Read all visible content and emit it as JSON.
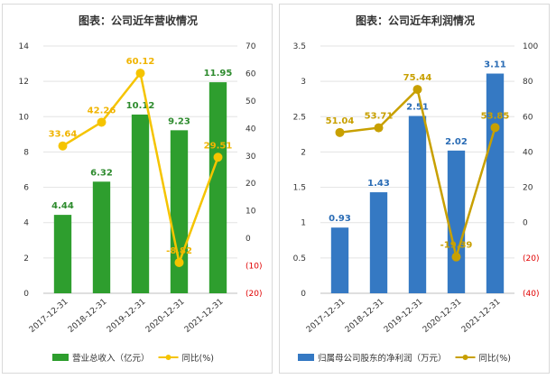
{
  "chart_data": [
    {
      "type": "bar+line",
      "title": "图表：公司近年营收情况",
      "categories": [
        "2017-12-31",
        "2018-12-31",
        "2019-12-31",
        "2020-12-31",
        "2021-12-31"
      ],
      "series": [
        {
          "name": "营业总收入（亿元）",
          "type": "bar",
          "axis": "left",
          "color": "#2e9e2e",
          "values": [
            4.44,
            6.32,
            10.12,
            9.23,
            11.95
          ],
          "labels": [
            "4.44",
            "6.32",
            "10.12",
            "9.23",
            "11.95"
          ],
          "label_color": "#2e8b2e"
        },
        {
          "name": "同比(%)",
          "type": "line",
          "axis": "right",
          "color": "#f5c400",
          "values": [
            33.64,
            42.26,
            60.12,
            -8.82,
            29.51
          ],
          "labels": [
            "33.64",
            "42.26",
            "60.12",
            "-8.82",
            "29.51"
          ],
          "label_color": "#f0b400"
        }
      ],
      "left_axis": {
        "min": 0,
        "max": 14,
        "ticks": [
          "0",
          "2",
          "4",
          "6",
          "8",
          "10",
          "12",
          "14"
        ]
      },
      "right_axis": {
        "min": -20,
        "max": 70,
        "ticks": [
          "(20)",
          "(10)",
          "0",
          "10",
          "20",
          "30",
          "40",
          "50",
          "60",
          "70"
        ]
      },
      "grid": true,
      "legend_position": "bottom"
    },
    {
      "type": "bar+line",
      "title": "图表：公司近年利润情况",
      "categories": [
        "2017-12-31",
        "2018-12-31",
        "2019-12-31",
        "2020-12-31",
        "2021-12-31"
      ],
      "series": [
        {
          "name": "归属母公司股东的净利润（万元）",
          "type": "bar",
          "axis": "left",
          "color": "#3579c3",
          "values": [
            0.93,
            1.43,
            2.51,
            2.02,
            3.11
          ],
          "labels": [
            "0.93",
            "1.43",
            "2.51",
            "2.02",
            "3.11"
          ],
          "label_color": "#2a6cb5"
        },
        {
          "name": "同比(%)",
          "type": "line",
          "axis": "right",
          "color": "#c8a000",
          "values": [
            51.04,
            53.71,
            75.44,
            -19.39,
            53.85
          ],
          "labels": [
            "51.04",
            "53.71",
            "75.44",
            "-19.39",
            "53.85"
          ],
          "label_color": "#c8a000"
        }
      ],
      "left_axis": {
        "min": 0,
        "max": 3.5,
        "ticks": [
          "0",
          "0.5",
          "1",
          "1.5",
          "2",
          "2.5",
          "3",
          "3.5"
        ]
      },
      "right_axis": {
        "min": -40,
        "max": 100,
        "ticks": [
          "(40)",
          "(20)",
          "0",
          "20",
          "40",
          "60",
          "80",
          "100"
        ]
      },
      "grid": true,
      "legend_position": "bottom"
    }
  ]
}
